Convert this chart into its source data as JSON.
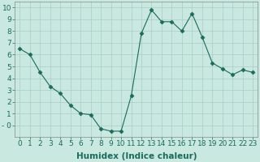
{
  "title": "",
  "xlabel": "Humidex (Indice chaleur)",
  "x_values": [
    0,
    1,
    2,
    3,
    4,
    5,
    6,
    7,
    8,
    9,
    10,
    11,
    12,
    13,
    14,
    15,
    16,
    17,
    18,
    19,
    20,
    21,
    22,
    23
  ],
  "y_values": [
    6.5,
    6.0,
    4.5,
    3.3,
    2.7,
    1.7,
    1.0,
    0.9,
    -0.3,
    -0.5,
    -0.5,
    2.5,
    7.8,
    9.8,
    8.8,
    8.8,
    8.0,
    9.5,
    7.5,
    5.3,
    4.8,
    4.3,
    4.7,
    4.5
  ],
  "line_color": "#1a6b5a",
  "marker": "D",
  "marker_size": 2.5,
  "bg_color": "#c8e8e0",
  "grid_color": "#a8ccc4",
  "ylim": [
    -1.0,
    10.5
  ],
  "xlim": [
    -0.5,
    23.5
  ],
  "yticks": [
    0,
    1,
    2,
    3,
    4,
    5,
    6,
    7,
    8,
    9,
    10
  ],
  "xticks": [
    0,
    1,
    2,
    3,
    4,
    5,
    6,
    7,
    8,
    9,
    10,
    11,
    12,
    13,
    14,
    15,
    16,
    17,
    18,
    19,
    20,
    21,
    22,
    23
  ],
  "xtick_labels": [
    "0",
    "1",
    "2",
    "3",
    "4",
    "5",
    "6",
    "7",
    "8",
    "9",
    "10",
    "11",
    "12",
    "13",
    "14",
    "15",
    "16",
    "17",
    "18",
    "19",
    "20",
    "21",
    "22",
    "23"
  ],
  "ytick_labels": [
    "- 0",
    "1",
    "2",
    "3",
    "4",
    "5",
    "6",
    "7",
    "8",
    "9",
    "10"
  ],
  "font_size": 6.5,
  "xlabel_font_size": 7.5
}
